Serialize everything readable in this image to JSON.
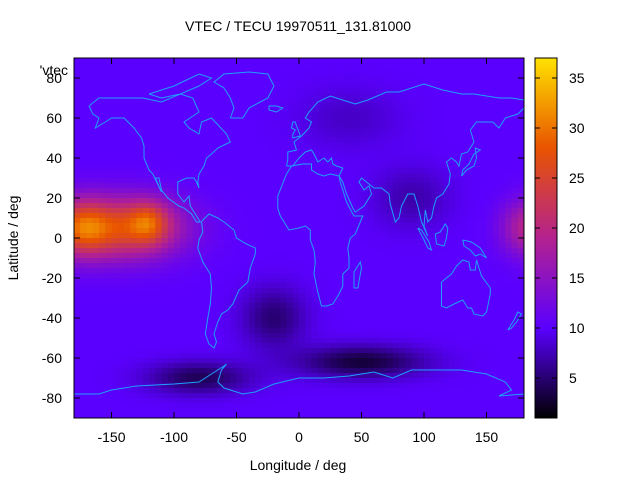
{
  "chart_data": {
    "type": "heatmap",
    "title": "VTEC / TECU 19970511_131.81000",
    "xlabel": "Longitude / deg",
    "ylabel": "Latitude / deg",
    "key_label": "'vtec",
    "xlim": [
      -180,
      180
    ],
    "ylim": [
      -90,
      90
    ],
    "xticks": [
      -150,
      -100,
      -50,
      0,
      50,
      100,
      150
    ],
    "yticks": [
      -80,
      -60,
      -40,
      -20,
      0,
      20,
      40,
      60,
      80
    ],
    "colorbar": {
      "min": 1,
      "max": 37,
      "ticks": [
        5,
        10,
        15,
        20,
        25,
        30,
        35
      ],
      "palette": "gnuplot-pm3d",
      "colors": [
        "#000000",
        "#5a00ff",
        "#b4228f",
        "#e85400",
        "#ffe200"
      ]
    },
    "grid": false,
    "background_vtec": 10,
    "features": [
      {
        "name": "equatorial-pacific-peak",
        "lon": -120,
        "lat": 5,
        "value": 33
      },
      {
        "name": "pacific-crest-band",
        "lon": -140,
        "lat": 5,
        "value": 25
      },
      {
        "name": "west-pacific-band",
        "lon": 170,
        "lat": 5,
        "value": 22
      },
      {
        "name": "south-atlantic-low",
        "lon": -20,
        "lat": -40,
        "value": 5
      },
      {
        "name": "southern-ocean-low",
        "lon": 50,
        "lat": -62,
        "value": 3
      },
      {
        "name": "antarctic-low",
        "lon": -80,
        "lat": -70,
        "value": 4
      },
      {
        "name": "asia-low",
        "lon": 90,
        "lat": 20,
        "value": 6
      }
    ],
    "coastline_color": "#1ea0ff"
  }
}
